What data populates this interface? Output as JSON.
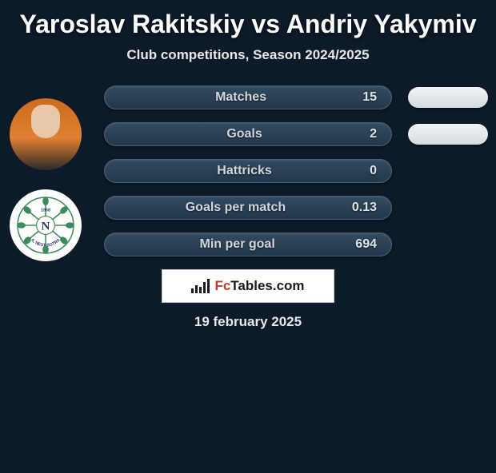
{
  "title": "Yaroslav Rakitskiy vs Andriy Yakymiv",
  "subtitle": "Club competitions, Season 2024/2025",
  "date": "19 february 2025",
  "branding": {
    "text_left": "Fc",
    "text_right": "Tables.com"
  },
  "club": {
    "name": "IL NEST-SOTRA",
    "year": "1968",
    "initial": "N",
    "badge_color": "#3d8a5c"
  },
  "right_pill_visible_rows": [
    0,
    1
  ],
  "stats": [
    {
      "label": "Matches",
      "value": "15"
    },
    {
      "label": "Goals",
      "value": "2"
    },
    {
      "label": "Hattricks",
      "value": "0"
    },
    {
      "label": "Goals per match",
      "value": "0.13"
    },
    {
      "label": "Min per goal",
      "value": "694"
    }
  ],
  "colors": {
    "background": "#0c1a2a",
    "pill_top": "#334a5f",
    "pill_bottom": "#22384d",
    "pill_border": "#4c5f70",
    "right_pill_top": "#f2f4f6",
    "right_pill_bottom": "#d4dbe1",
    "text": "#ffffff",
    "muted_text": "#d0d6dc",
    "brand_accent": "#c43a2e"
  }
}
